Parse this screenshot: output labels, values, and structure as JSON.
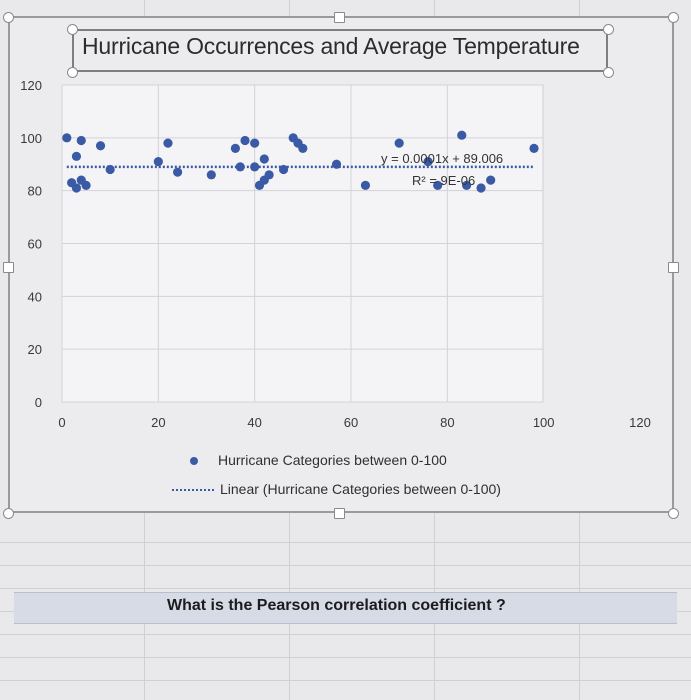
{
  "chart_data": {
    "type": "scatter",
    "title": "Hurricane Occurrences and Average Temperature",
    "xlabel": "",
    "ylabel": "",
    "xlim": [
      0,
      120
    ],
    "ylim": [
      0,
      120
    ],
    "x_ticks": [
      "0",
      "20",
      "40",
      "60",
      "80",
      "100",
      "120"
    ],
    "y_ticks": [
      "0",
      "20",
      "40",
      "60",
      "80",
      "100",
      "120"
    ],
    "grid": true,
    "legend_position": "bottom",
    "series": [
      {
        "name": "Hurricane Categories between 0-100",
        "color": "#3b5aa6",
        "points": [
          [
            1,
            100
          ],
          [
            4,
            99
          ],
          [
            3,
            93
          ],
          [
            2,
            83
          ],
          [
            3,
            81
          ],
          [
            4,
            84
          ],
          [
            5,
            82
          ],
          [
            8,
            97
          ],
          [
            10,
            88
          ],
          [
            22,
            98
          ],
          [
            20,
            91
          ],
          [
            24,
            87
          ],
          [
            31,
            86
          ],
          [
            36,
            96
          ],
          [
            38,
            99
          ],
          [
            40,
            98
          ],
          [
            37,
            89
          ],
          [
            42,
            92
          ],
          [
            40,
            89
          ],
          [
            43,
            86
          ],
          [
            42,
            84
          ],
          [
            41,
            82
          ],
          [
            46,
            88
          ],
          [
            48,
            100
          ],
          [
            49,
            98
          ],
          [
            50,
            96
          ],
          [
            57,
            90
          ],
          [
            63,
            82
          ],
          [
            70,
            98
          ],
          [
            76,
            91
          ],
          [
            78,
            82
          ],
          [
            84,
            82
          ],
          [
            87,
            81
          ],
          [
            89,
            84
          ],
          [
            83,
            101
          ],
          [
            98,
            96
          ]
        ]
      }
    ],
    "trendline": {
      "name": "Linear (Hurricane Categories between 0-100)",
      "type": "linear",
      "x_range": [
        1,
        98
      ],
      "slope": 0.0001,
      "intercept": 89.006,
      "equation": "y = 0.0001x + 89.006",
      "r_squared": "R² = 9E-06"
    }
  },
  "question": "What is the Pearson correlation coefficient ?"
}
